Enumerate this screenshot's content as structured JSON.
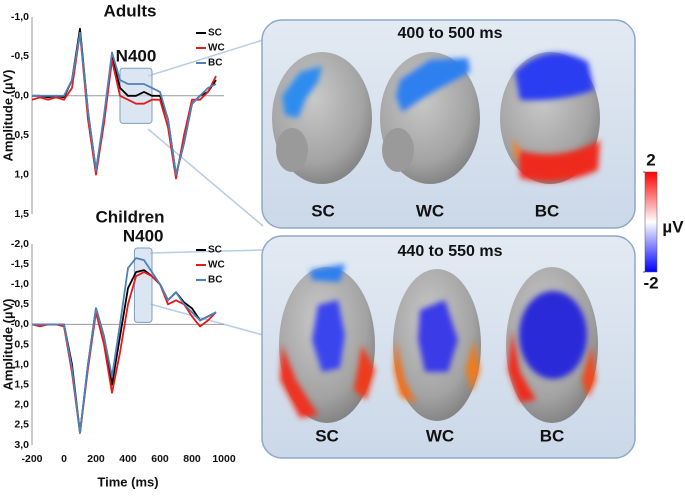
{
  "chart_data": [
    {
      "type": "line",
      "title": "Adults",
      "ylabel": "Amplitude (µV)",
      "y_inverted": true,
      "x": [
        -200,
        -150,
        -100,
        -50,
        0,
        50,
        100,
        150,
        200,
        250,
        300,
        350,
        400,
        450,
        500,
        550,
        600,
        650,
        700,
        750,
        800,
        850,
        900,
        950
      ],
      "xlim": [
        -200,
        1000
      ],
      "ylim": [
        -1.0,
        1.5
      ],
      "yticks": [
        {
          "value": -1.0,
          "label": "-1,0"
        },
        {
          "value": -0.5,
          "label": "-0,5"
        },
        {
          "value": 0,
          "label": "-0,0"
        },
        {
          "value": 0.5,
          "label": "0,5"
        },
        {
          "value": 1.0,
          "label": "1,0"
        },
        {
          "value": 1.5,
          "label": "1,5"
        }
      ],
      "series": [
        {
          "name": "SC",
          "color": "#000000",
          "values": [
            0,
            0,
            0.02,
            0,
            0.02,
            -0.2,
            -0.85,
            0.2,
            0.95,
            0.3,
            -0.5,
            -0.1,
            0.0,
            0.0,
            -0.05,
            0.0,
            0.0,
            0.3,
            1.0,
            0.6,
            0.1,
            0.0,
            -0.05,
            -0.2
          ]
        },
        {
          "name": "WC",
          "color": "#e8191b",
          "values": [
            0.05,
            0.02,
            0.05,
            0.02,
            0.05,
            -0.1,
            -0.8,
            0.3,
            1.0,
            0.35,
            -0.45,
            0.0,
            0.05,
            0.1,
            0.1,
            0.05,
            0.05,
            0.4,
            1.05,
            0.5,
            0.05,
            0.05,
            -0.05,
            -0.25
          ]
        },
        {
          "name": "BC",
          "color": "#4f80b8",
          "values": [
            0,
            0,
            0,
            0,
            0,
            -0.2,
            -0.8,
            0.2,
            0.95,
            0.25,
            -0.55,
            -0.2,
            -0.15,
            -0.15,
            -0.15,
            -0.1,
            -0.05,
            0.3,
            1.0,
            0.6,
            0.1,
            0.0,
            -0.1,
            -0.15
          ]
        }
      ],
      "annotation": {
        "label": "N400",
        "x_range": [
          350,
          550
        ],
        "y_range": [
          -0.35,
          0.35
        ]
      }
    },
    {
      "type": "line",
      "title": "Children",
      "ylabel": "Amplitude (µV)",
      "xlabel": "Time (ms)",
      "y_inverted": true,
      "x": [
        -200,
        -150,
        -100,
        -50,
        0,
        50,
        100,
        150,
        200,
        250,
        300,
        350,
        400,
        450,
        500,
        550,
        600,
        650,
        700,
        750,
        800,
        850,
        900,
        950
      ],
      "xlim": [
        -200,
        1000
      ],
      "xticks": [
        -200,
        0,
        200,
        400,
        600,
        800,
        1000
      ],
      "ylim": [
        -2.0,
        3.0
      ],
      "yticks": [
        {
          "value": -2.0,
          "label": "-2,0"
        },
        {
          "value": -1.5,
          "label": "-1,5"
        },
        {
          "value": -1.0,
          "label": "-1,0"
        },
        {
          "value": -0.5,
          "label": "-0,5"
        },
        {
          "value": 0,
          "label": "-0,0"
        },
        {
          "value": 0.5,
          "label": "0,5"
        },
        {
          "value": 1.0,
          "label": "1,0"
        },
        {
          "value": 1.5,
          "label": "1,5"
        },
        {
          "value": 2.0,
          "label": "2,0"
        },
        {
          "value": 2.5,
          "label": "2,5"
        },
        {
          "value": 3.0,
          "label": "3,0"
        }
      ],
      "series": [
        {
          "name": "SC",
          "color": "#000000",
          "values": [
            0,
            0,
            0,
            0,
            0,
            1.0,
            2.7,
            1.0,
            -0.4,
            0.3,
            1.5,
            0.3,
            -0.9,
            -1.3,
            -1.35,
            -1.2,
            -1.0,
            -0.6,
            -0.8,
            -0.55,
            -0.4,
            -0.1,
            -0.2,
            -0.3
          ]
        },
        {
          "name": "WC",
          "color": "#e8191b",
          "values": [
            0,
            0.05,
            0,
            0,
            0.05,
            1.2,
            2.7,
            1.1,
            -0.3,
            0.5,
            1.7,
            0.7,
            -0.5,
            -1.2,
            -1.3,
            -1.2,
            -1.0,
            -0.5,
            -0.6,
            -0.5,
            -0.2,
            0.05,
            -0.1,
            -0.3
          ]
        },
        {
          "name": "BC",
          "color": "#4f80b8",
          "values": [
            0,
            0,
            0,
            0,
            0,
            1.1,
            2.7,
            1.0,
            -0.4,
            0.3,
            1.3,
            0.0,
            -1.4,
            -1.65,
            -1.6,
            -1.3,
            -1.0,
            -0.6,
            -0.8,
            -0.5,
            -0.3,
            -0.1,
            -0.2,
            -0.3
          ]
        }
      ],
      "annotation": {
        "label": "N400",
        "x_range": [
          440,
          550
        ],
        "y_range": [
          -1.9,
          -0.05
        ]
      }
    }
  ],
  "topomaps": [
    {
      "title": "400 to 500 ms",
      "conditions": [
        "SC",
        "WC",
        "BC"
      ]
    },
    {
      "title": "440 to 550 ms",
      "conditions": [
        "SC",
        "WC",
        "BC"
      ]
    }
  ],
  "colorbar": {
    "ticks": [
      2,
      -2
    ],
    "label": "µV"
  }
}
